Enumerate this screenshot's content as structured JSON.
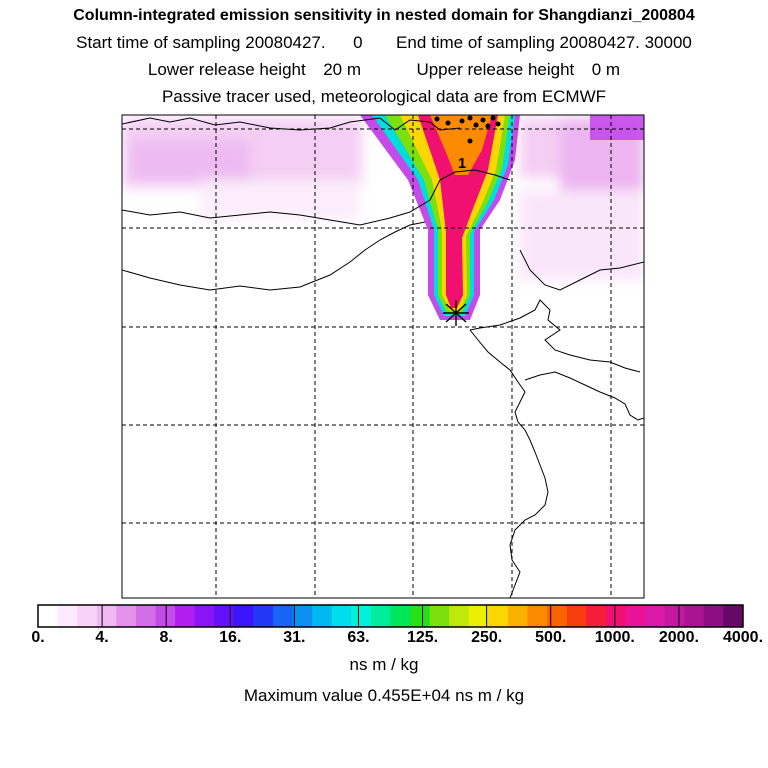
{
  "chart_data": {
    "type": "heatmap",
    "title": "Column-integrated emission sensitivity in nested domain for Shangdianzi_200804",
    "start_label": "Start time of sampling",
    "start_value": "20080427.",
    "start_hour": "0",
    "end_label": "End time of sampling",
    "end_value": "20080427. 30000",
    "lower_label": "Lower release height",
    "lower_value": "20 m",
    "upper_label": "Upper release height",
    "upper_value": "0 m",
    "subtitle": "Passive tracer used, meteorological data are from ECMWF",
    "colorbar_ticks": [
      "0.",
      "4.",
      "8.",
      "16.",
      "31.",
      "63.",
      "125.",
      "250.",
      "500.",
      "1000.",
      "2000.",
      "4000."
    ],
    "colorbar_colors": [
      "#ffffff",
      "#fdeafd",
      "#f8d2f8",
      "#f0b8f0",
      "#e394ea",
      "#d36ee6",
      "#c44aea",
      "#b21ef0",
      "#8a14f6",
      "#6410f8",
      "#3c16fa",
      "#2436f6",
      "#1864f4",
      "#0c90f2",
      "#00b8f0",
      "#00ddee",
      "#00f2d8",
      "#00ee9c",
      "#00e65a",
      "#26e01a",
      "#7ce00e",
      "#c0e80a",
      "#ecee04",
      "#fcd600",
      "#fcb000",
      "#fc8a00",
      "#fa6400",
      "#f83c10",
      "#f41e3c",
      "#f01070",
      "#ea1296",
      "#dc18a8",
      "#c418a0",
      "#aa1492",
      "#8c0e82",
      "#660868"
    ],
    "unit": "ns m / kg",
    "max_label": "Maximum value",
    "max_value": "0.455E+04",
    "max_unit": "ns m / kg",
    "contour_label": "1",
    "receptor": "Shangdianzi",
    "plume_direction": "north"
  }
}
